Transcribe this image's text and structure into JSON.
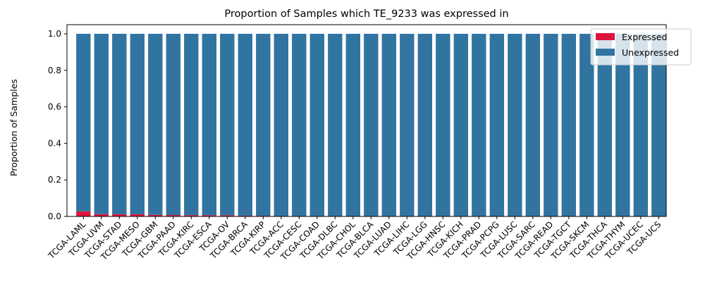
{
  "chart_data": {
    "type": "bar",
    "stacked": true,
    "title": "Proportion of Samples which TE_9233 was expressed in",
    "xlabel": "",
    "ylabel": "Proportion of Samples",
    "ylim": [
      0,
      1.05
    ],
    "yticks": [
      0.0,
      0.2,
      0.4,
      0.6,
      0.8,
      1.0
    ],
    "ytick_labels": [
      "0.0",
      "0.2",
      "0.4",
      "0.6",
      "0.8",
      "1.0"
    ],
    "grid": false,
    "legend_position": "top-right",
    "categories": [
      "TCGA-LAML",
      "TCGA-UVM",
      "TCGA-STAD",
      "TCGA-MESO",
      "TCGA-GBM",
      "TCGA-PAAD",
      "TCGA-KIRC",
      "TCGA-ESCA",
      "TCGA-OV",
      "TCGA-BRCA",
      "TCGA-KIRP",
      "TCGA-ACC",
      "TCGA-CESC",
      "TCGA-COAD",
      "TCGA-DLBC",
      "TCGA-CHOL",
      "TCGA-BLCA",
      "TCGA-LUAD",
      "TCGA-LIHC",
      "TCGA-LGG",
      "TCGA-HNSC",
      "TCGA-KICH",
      "TCGA-PRAD",
      "TCGA-PCPG",
      "TCGA-LUSC",
      "TCGA-SARC",
      "TCGA-READ",
      "TCGA-TGCT",
      "TCGA-SKCM",
      "TCGA-THCA",
      "TCGA-THYM",
      "TCGA-UCEC",
      "TCGA-UCS"
    ],
    "series": [
      {
        "name": "Expressed",
        "color": "#dc143c",
        "values": [
          0.028,
          0.0125,
          0.012,
          0.0115,
          0.0085,
          0.0075,
          0.007,
          0.0065,
          0.0065,
          0.004,
          0.0035,
          0,
          0,
          0,
          0,
          0,
          0,
          0,
          0,
          0,
          0,
          0,
          0,
          0,
          0,
          0,
          0,
          0,
          0,
          0,
          0,
          0,
          0
        ]
      },
      {
        "name": "Unexpressed",
        "color": "#3274a1",
        "values": [
          0.972,
          0.9875,
          0.988,
          0.9885,
          0.9915,
          0.9925,
          0.993,
          0.9935,
          0.9935,
          0.996,
          0.9965,
          1,
          1,
          1,
          1,
          1,
          1,
          1,
          1,
          1,
          1,
          1,
          1,
          1,
          1,
          1,
          1,
          1,
          1,
          1,
          1,
          1,
          1
        ]
      }
    ]
  }
}
